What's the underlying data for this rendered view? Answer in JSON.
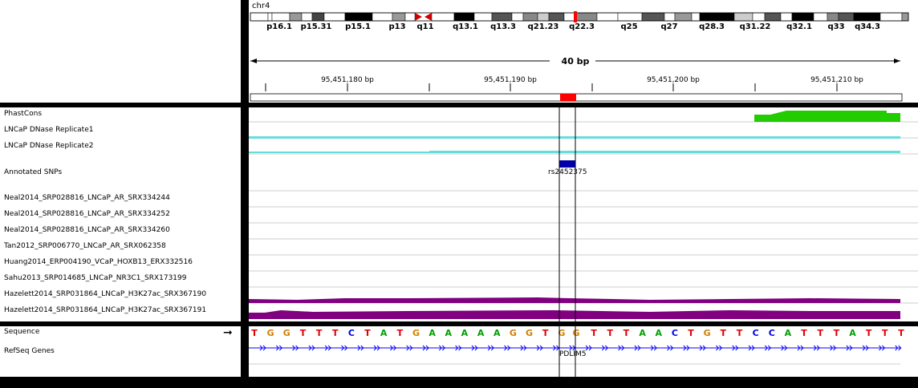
{
  "chromosome": "chr4",
  "bands": [
    "p16.1",
    "p15.31",
    "p15.1",
    "p13",
    "q11",
    "q13.1",
    "q13.3",
    "q21.23",
    "q22.3",
    "q25",
    "q27",
    "q28.3",
    "q31.22",
    "q32.1",
    "q33",
    "q34.3"
  ],
  "span_label": "40 bp",
  "ruler_ticks": [
    "95,451,180 bp",
    "95,451,190 bp",
    "95,451,200 bp",
    "95,451,210 bp"
  ],
  "tracks": [
    {
      "label": "PhastCons"
    },
    {
      "label": "LNCaP DNase Replicate1"
    },
    {
      "label": "LNCaP DNase Replicate2"
    },
    {
      "label": "Annotated SNPs"
    },
    {
      "label": "Neal2014_SRP028816_LNCaP_AR_SRX334244"
    },
    {
      "label": "Neal2014_SRP028816_LNCaP_AR_SRX334252"
    },
    {
      "label": "Neal2014_SRP028816_LNCaP_AR_SRX334260"
    },
    {
      "label": "Tan2012_SRP006770_LNCaP_AR_SRX062358"
    },
    {
      "label": "Huang2014_ERP004190_VCaP_HOXB13_ERX332516"
    },
    {
      "label": "Sahu2013_SRP014685_LNCaP_NR3C1_SRX173199"
    },
    {
      "label": "Hazelett2014_SRP031864_LNCaP_H3K27ac_SRX367190"
    },
    {
      "label": "Hazelett2014_SRP031864_LNCaP_H3K27ac_SRX367191"
    }
  ],
  "snp_label": "rs2452375",
  "feature_tracks": {
    "sequence_label": "Sequence",
    "refseq_label": "RefSeq Genes"
  },
  "sequence": "TGGTTTCTATGAAAAAGGTGGTTTAACTGTTCCATTTATTT",
  "gene_name": "PDLIM5",
  "colors": {
    "A": "#00a000",
    "C": "#0000e0",
    "G": "#d18000",
    "T": "#e00000",
    "phastcons": "#22cc00",
    "dnase": "#66dddd",
    "h3k27ac": "#800080",
    "snp": "#0000aa",
    "gene": "#0000ff",
    "cursor": "#ff0000"
  }
}
